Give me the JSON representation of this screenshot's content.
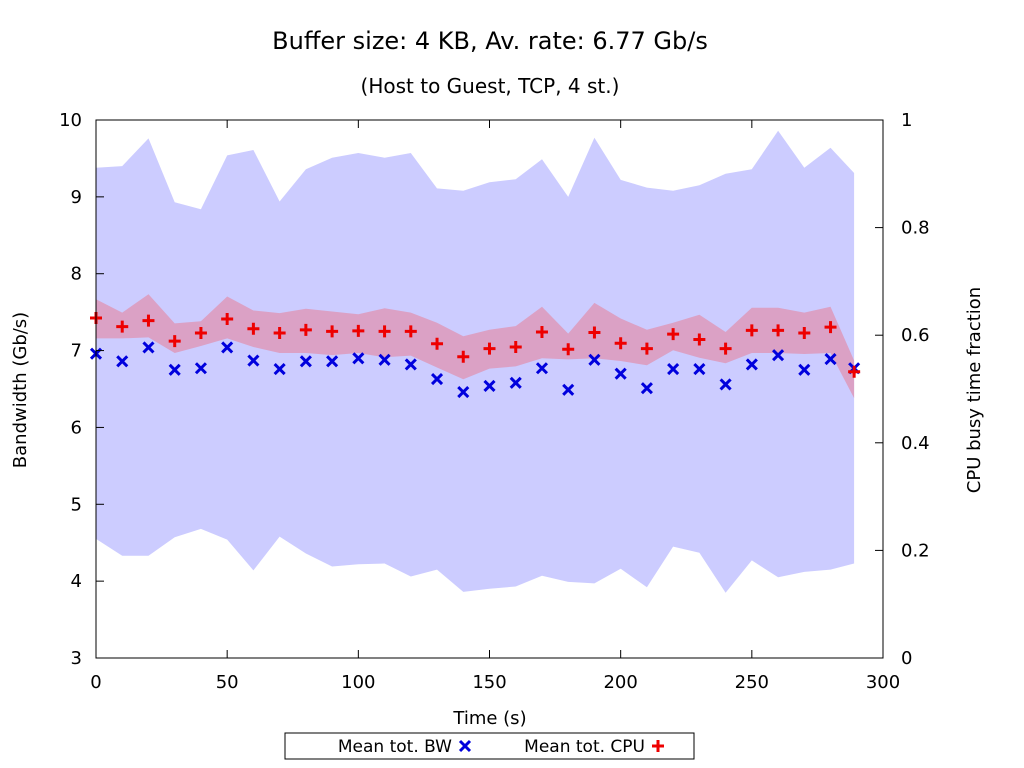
{
  "chart_data": {
    "type": "scatter",
    "title": "Buffer size: 4 KB, Av. rate: 6.77 Gb/s",
    "subtitle": "(Host to Guest, TCP, 4 st.)",
    "xlabel": "Time (s)",
    "ylabel": "Bandwidth (Gb/s)",
    "y2label": "CPU busy time fraction",
    "xlim": [
      0,
      300
    ],
    "ylim": [
      3,
      10
    ],
    "y2lim": [
      0,
      1
    ],
    "xticks": [
      "0",
      "50",
      "100",
      "150",
      "200",
      "250",
      "300"
    ],
    "yticks": [
      "3",
      "4",
      "5",
      "6",
      "7",
      "8",
      "9",
      "10"
    ],
    "y2ticks": [
      "0",
      "0.2",
      "0.4",
      "0.6",
      "0.8",
      "1"
    ],
    "grid": false,
    "legend_position": "bottom-center",
    "x": [
      0,
      10,
      20,
      30,
      40,
      50,
      60,
      70,
      80,
      90,
      100,
      110,
      120,
      130,
      140,
      150,
      160,
      170,
      180,
      190,
      200,
      210,
      220,
      230,
      240,
      250,
      260,
      270,
      280,
      289
    ],
    "series": [
      {
        "name": "Mean tot. BW",
        "axis": "left",
        "marker": "x",
        "color": "#0000dd",
        "band_color": "#ccccff",
        "values": [
          6.96,
          6.86,
          7.04,
          6.75,
          6.77,
          7.04,
          6.87,
          6.76,
          6.86,
          6.86,
          6.9,
          6.88,
          6.82,
          6.63,
          6.46,
          6.54,
          6.58,
          6.77,
          6.49,
          6.88,
          6.7,
          6.51,
          6.76,
          6.76,
          6.56,
          6.82,
          6.94,
          6.75,
          6.89,
          6.77
        ],
        "band_upper": [
          9.38,
          9.4,
          9.76,
          8.93,
          8.84,
          9.54,
          9.61,
          8.94,
          9.36,
          9.51,
          9.57,
          9.51,
          9.57,
          9.11,
          9.08,
          9.19,
          9.23,
          9.49,
          9.0,
          9.77,
          9.22,
          9.12,
          9.08,
          9.15,
          9.3,
          9.36,
          9.86,
          9.38,
          9.64,
          9.31
        ],
        "band_lower": [
          4.55,
          4.33,
          4.33,
          4.57,
          4.68,
          4.54,
          4.14,
          4.58,
          4.36,
          4.19,
          4.22,
          4.23,
          4.06,
          4.15,
          3.86,
          3.9,
          3.93,
          4.07,
          3.99,
          3.97,
          4.16,
          3.92,
          4.45,
          4.37,
          3.85,
          4.27,
          4.05,
          4.12,
          4.15,
          4.23
        ]
      },
      {
        "name": "Mean tot. CPU",
        "axis": "right",
        "marker": "+",
        "color": "#ee0000",
        "band_color": "#dd99bb",
        "values": [
          0.632,
          0.616,
          0.627,
          0.589,
          0.604,
          0.63,
          0.612,
          0.604,
          0.61,
          0.607,
          0.608,
          0.607,
          0.607,
          0.584,
          0.56,
          0.575,
          0.578,
          0.606,
          0.574,
          0.605,
          0.585,
          0.575,
          0.602,
          0.592,
          0.575,
          0.609,
          0.609,
          0.604,
          0.615,
          0.532
        ],
        "band_upper": [
          0.667,
          0.642,
          0.676,
          0.622,
          0.626,
          0.672,
          0.646,
          0.641,
          0.649,
          0.644,
          0.639,
          0.65,
          0.642,
          0.623,
          0.598,
          0.61,
          0.617,
          0.653,
          0.603,
          0.66,
          0.631,
          0.61,
          0.623,
          0.638,
          0.606,
          0.651,
          0.651,
          0.642,
          0.653,
          0.553
        ],
        "band_lower": [
          0.594,
          0.594,
          0.596,
          0.567,
          0.58,
          0.594,
          0.578,
          0.567,
          0.567,
          0.563,
          0.567,
          0.559,
          0.562,
          0.54,
          0.518,
          0.538,
          0.542,
          0.557,
          0.555,
          0.557,
          0.552,
          0.544,
          0.572,
          0.558,
          0.548,
          0.567,
          0.567,
          0.565,
          0.567,
          0.483
        ]
      }
    ]
  }
}
